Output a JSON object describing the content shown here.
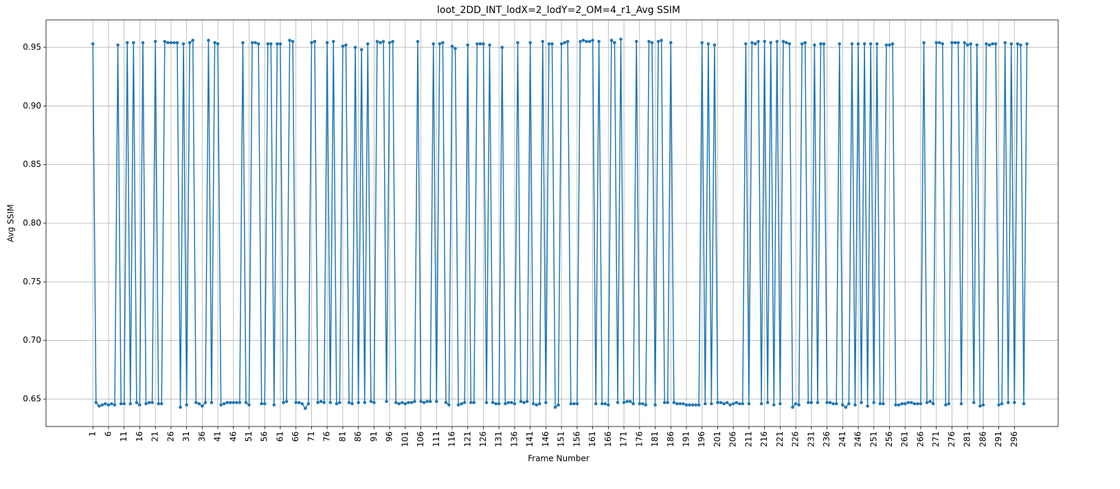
{
  "chart_data": {
    "type": "line",
    "title": "loot_2DD_INT_lodX=2_lodY=2_OM=4_r1_Avg SSIM",
    "x_label": "Frame Number",
    "y_label": "Avg SSIM",
    "color": "#1f77b4",
    "grid": true,
    "x": [
      1,
      2,
      3,
      4,
      5,
      6,
      7,
      8,
      9,
      10,
      11,
      12,
      13,
      14,
      15,
      16,
      17,
      18,
      19,
      20,
      21,
      22,
      23,
      24,
      25,
      26,
      27,
      28,
      29,
      30,
      31,
      32,
      33,
      34,
      35,
      36,
      37,
      38,
      39,
      40,
      41,
      42,
      43,
      44,
      45,
      46,
      47,
      48,
      49,
      50,
      51,
      52,
      53,
      54,
      55,
      56,
      57,
      58,
      59,
      60,
      61,
      62,
      63,
      64,
      65,
      66,
      67,
      68,
      69,
      70,
      71,
      72,
      73,
      74,
      75,
      76,
      77,
      78,
      79,
      80,
      81,
      82,
      83,
      84,
      85,
      86,
      87,
      88,
      89,
      90,
      91,
      92,
      93,
      94,
      95,
      96,
      97,
      98,
      99,
      100,
      101,
      102,
      103,
      104,
      105,
      106,
      107,
      108,
      109,
      110,
      111,
      112,
      113,
      114,
      115,
      116,
      117,
      118,
      119,
      120,
      121,
      122,
      123,
      124,
      125,
      126,
      127,
      128,
      129,
      130,
      131,
      132,
      133,
      134,
      135,
      136,
      137,
      138,
      139,
      140,
      141,
      142,
      143,
      144,
      145,
      146,
      147,
      148,
      149,
      150,
      151,
      152,
      153,
      154,
      155,
      156,
      157,
      158,
      159,
      160,
      161,
      162,
      163,
      164,
      165,
      166,
      167,
      168,
      169,
      170,
      171,
      172,
      173,
      174,
      175,
      176,
      177,
      178,
      179,
      180,
      181,
      182,
      183,
      184,
      185,
      186,
      187,
      188,
      189,
      190,
      191,
      192,
      193,
      194,
      195,
      196,
      197,
      198,
      199,
      200,
      201,
      202,
      203,
      204,
      205,
      206,
      207,
      208,
      209,
      210,
      211,
      212,
      213,
      214,
      215,
      216,
      217,
      218,
      219,
      220,
      221,
      222,
      223,
      224,
      225,
      226,
      227,
      228,
      229,
      230,
      231,
      232,
      233,
      234,
      235,
      236,
      237,
      238,
      239,
      240,
      241,
      242,
      243,
      244,
      245,
      246,
      247,
      248,
      249,
      250,
      251,
      252,
      253,
      254,
      255,
      256,
      257,
      258,
      259,
      260,
      261,
      262,
      263,
      264,
      265,
      266,
      267,
      268,
      269,
      270,
      271,
      272,
      273,
      274,
      275,
      276,
      277,
      278,
      279,
      280,
      281,
      282,
      283,
      284,
      285,
      286,
      287,
      288,
      289,
      290,
      291,
      292,
      293,
      294,
      295,
      296,
      297,
      298,
      299,
      300
    ],
    "values": [
      0.953,
      0.647,
      0.644,
      0.645,
      0.646,
      0.645,
      0.646,
      0.645,
      0.952,
      0.646,
      0.646,
      0.954,
      0.646,
      0.954,
      0.647,
      0.645,
      0.954,
      0.646,
      0.647,
      0.647,
      0.955,
      0.646,
      0.646,
      0.955,
      0.954,
      0.954,
      0.954,
      0.954,
      0.643,
      0.953,
      0.645,
      0.954,
      0.956,
      0.647,
      0.646,
      0.644,
      0.647,
      0.956,
      0.647,
      0.954,
      0.953,
      0.645,
      0.646,
      0.647,
      0.647,
      0.647,
      0.647,
      0.647,
      0.954,
      0.647,
      0.645,
      0.954,
      0.954,
      0.953,
      0.646,
      0.646,
      0.953,
      0.953,
      0.645,
      0.953,
      0.953,
      0.647,
      0.648,
      0.956,
      0.955,
      0.647,
      0.647,
      0.646,
      0.642,
      0.646,
      0.954,
      0.955,
      0.647,
      0.648,
      0.647,
      0.954,
      0.647,
      0.955,
      0.646,
      0.647,
      0.951,
      0.952,
      0.647,
      0.646,
      0.95,
      0.647,
      0.948,
      0.647,
      0.953,
      0.648,
      0.647,
      0.955,
      0.954,
      0.955,
      0.648,
      0.954,
      0.955,
      0.647,
      0.646,
      0.647,
      0.646,
      0.647,
      0.647,
      0.648,
      0.955,
      0.648,
      0.647,
      0.648,
      0.648,
      0.953,
      0.648,
      0.953,
      0.954,
      0.647,
      0.645,
      0.951,
      0.949,
      0.645,
      0.646,
      0.647,
      0.952,
      0.647,
      0.647,
      0.953,
      0.953,
      0.953,
      0.647,
      0.952,
      0.647,
      0.646,
      0.646,
      0.95,
      0.646,
      0.647,
      0.647,
      0.646,
      0.954,
      0.648,
      0.647,
      0.648,
      0.954,
      0.646,
      0.645,
      0.646,
      0.955,
      0.647,
      0.953,
      0.953,
      0.643,
      0.645,
      0.953,
      0.954,
      0.955,
      0.646,
      0.646,
      0.646,
      0.955,
      0.956,
      0.955,
      0.955,
      0.956,
      0.646,
      0.955,
      0.646,
      0.646,
      0.645,
      0.956,
      0.954,
      0.647,
      0.957,
      0.647,
      0.648,
      0.648,
      0.646,
      0.955,
      0.646,
      0.646,
      0.645,
      0.955,
      0.954,
      0.645,
      0.955,
      0.956,
      0.647,
      0.647,
      0.954,
      0.647,
      0.646,
      0.646,
      0.646,
      0.645,
      0.645,
      0.645,
      0.645,
      0.645,
      0.954,
      0.646,
      0.953,
      0.646,
      0.952,
      0.647,
      0.647,
      0.646,
      0.647,
      0.645,
      0.646,
      0.647,
      0.646,
      0.646,
      0.953,
      0.646,
      0.954,
      0.953,
      0.955,
      0.646,
      0.955,
      0.647,
      0.954,
      0.645,
      0.955,
      0.646,
      0.955,
      0.954,
      0.953,
      0.643,
      0.646,
      0.645,
      0.953,
      0.954,
      0.647,
      0.647,
      0.952,
      0.647,
      0.953,
      0.953,
      0.647,
      0.647,
      0.646,
      0.646,
      0.953,
      0.645,
      0.643,
      0.646,
      0.953,
      0.645,
      0.953,
      0.647,
      0.953,
      0.644,
      0.953,
      0.647,
      0.953,
      0.646,
      0.646,
      0.952,
      0.952,
      0.953,
      0.645,
      0.645,
      0.646,
      0.646,
      0.647,
      0.647,
      0.646,
      0.646,
      0.646,
      0.954,
      0.647,
      0.648,
      0.646,
      0.954,
      0.954,
      0.953,
      0.645,
      0.646,
      0.954,
      0.954,
      0.954,
      0.646,
      0.954,
      0.952,
      0.953,
      0.647,
      0.952,
      0.644,
      0.645,
      0.953,
      0.952,
      0.953,
      0.953,
      0.645,
      0.646,
      0.954,
      0.647,
      0.953,
      0.647,
      0.953,
      0.952,
      0.646,
      0.953
    ],
    "xlim": [
      -14,
      310
    ],
    "xticks": [
      1,
      6,
      11,
      16,
      21,
      26,
      31,
      36,
      41,
      46,
      51,
      56,
      61,
      66,
      71,
      76,
      81,
      86,
      91,
      96,
      101,
      106,
      111,
      116,
      121,
      126,
      131,
      136,
      141,
      146,
      151,
      156,
      161,
      166,
      171,
      176,
      181,
      186,
      191,
      196,
      201,
      206,
      211,
      216,
      221,
      226,
      231,
      236,
      241,
      246,
      251,
      256,
      261,
      266,
      271,
      276,
      281,
      286,
      291,
      296
    ],
    "ylim": [
      0.6266,
      0.9734
    ],
    "yticks": [
      0.65,
      {
        "value": 0.7,
        "label": "0.70"
      },
      0.75,
      {
        "value": 0.8,
        "label": "0.80"
      },
      0.85,
      {
        "value": 0.9,
        "label": "0.90"
      },
      0.95
    ]
  }
}
